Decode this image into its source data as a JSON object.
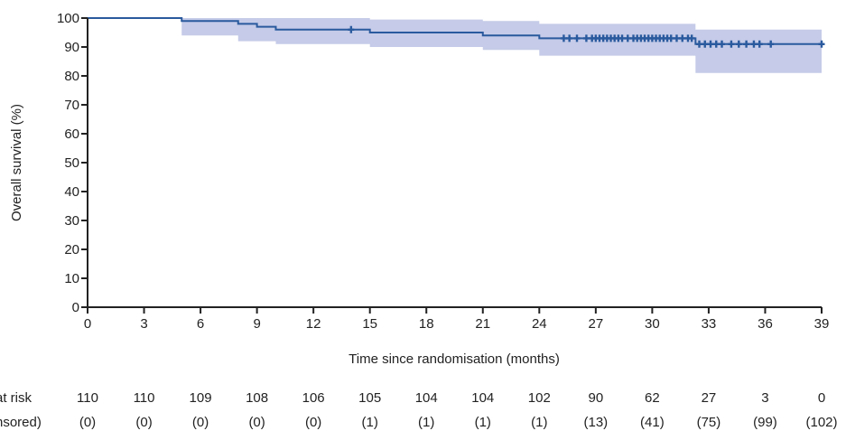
{
  "chart_data": {
    "type": "line",
    "title": "",
    "xlabel": "Time since randomisation (months)",
    "ylabel": "Overall survival (%)",
    "xlim": [
      0,
      39
    ],
    "ylim": [
      0,
      100
    ],
    "x_ticks": [
      0,
      3,
      6,
      9,
      12,
      15,
      18,
      21,
      24,
      27,
      30,
      33,
      36,
      39
    ],
    "y_ticks": [
      0,
      10,
      20,
      30,
      40,
      50,
      60,
      70,
      80,
      90,
      100
    ],
    "grid": false,
    "legend": "none",
    "colors": {
      "line": "#2a5a9e",
      "band": "#c5cbe8",
      "marker": "#2a5a9e"
    },
    "series": [
      {
        "type": "step",
        "x": [
          0,
          5,
          8,
          9,
          10,
          15,
          21,
          24,
          32.3,
          39
        ],
        "y": [
          100,
          99,
          98,
          97,
          96,
          95,
          94,
          93,
          91,
          91
        ]
      }
    ],
    "confidence_band": {
      "x": [
        5,
        8,
        10,
        15,
        21,
        24,
        32.3,
        39
      ],
      "lower": [
        94,
        92,
        91,
        90,
        89,
        87,
        81,
        81
      ],
      "upper": [
        100,
        100,
        100,
        99.5,
        99,
        98,
        96,
        96
      ]
    },
    "censor_marks": {
      "x": [
        14,
        25.3,
        25.6,
        26.0,
        26.5,
        26.8,
        27.0,
        27.2,
        27.4,
        27.6,
        27.8,
        28.0,
        28.2,
        28.4,
        28.7,
        29.0,
        29.2,
        29.4,
        29.6,
        29.8,
        30.0,
        30.2,
        30.4,
        30.6,
        30.8,
        31.0,
        31.3,
        31.6,
        31.9,
        32.1,
        32.5,
        32.8,
        33.1,
        33.4,
        33.7,
        34.2,
        34.6,
        35.0,
        35.4,
        35.7,
        36.3,
        39.0
      ],
      "y": [
        96,
        93,
        93,
        93,
        93,
        93,
        93,
        93,
        93,
        93,
        93,
        93,
        93,
        93,
        93,
        93,
        93,
        93,
        93,
        93,
        93,
        93,
        93,
        93,
        93,
        93,
        93,
        93,
        93,
        93,
        91,
        91,
        91,
        91,
        91,
        91,
        91,
        91,
        91,
        91,
        91,
        91
      ]
    },
    "risk_table": {
      "row1_label": "at risk",
      "row2_label": "nsored)",
      "numbers": [
        "110",
        "110",
        "109",
        "108",
        "106",
        "105",
        "104",
        "104",
        "102",
        "90",
        "62",
        "27",
        "3",
        "0"
      ],
      "censored": [
        "(0)",
        "(0)",
        "(0)",
        "(0)",
        "(0)",
        "(1)",
        "(1)",
        "(1)",
        "(1)",
        "(13)",
        "(41)",
        "(75)",
        "(99)",
        "(102)"
      ]
    }
  }
}
